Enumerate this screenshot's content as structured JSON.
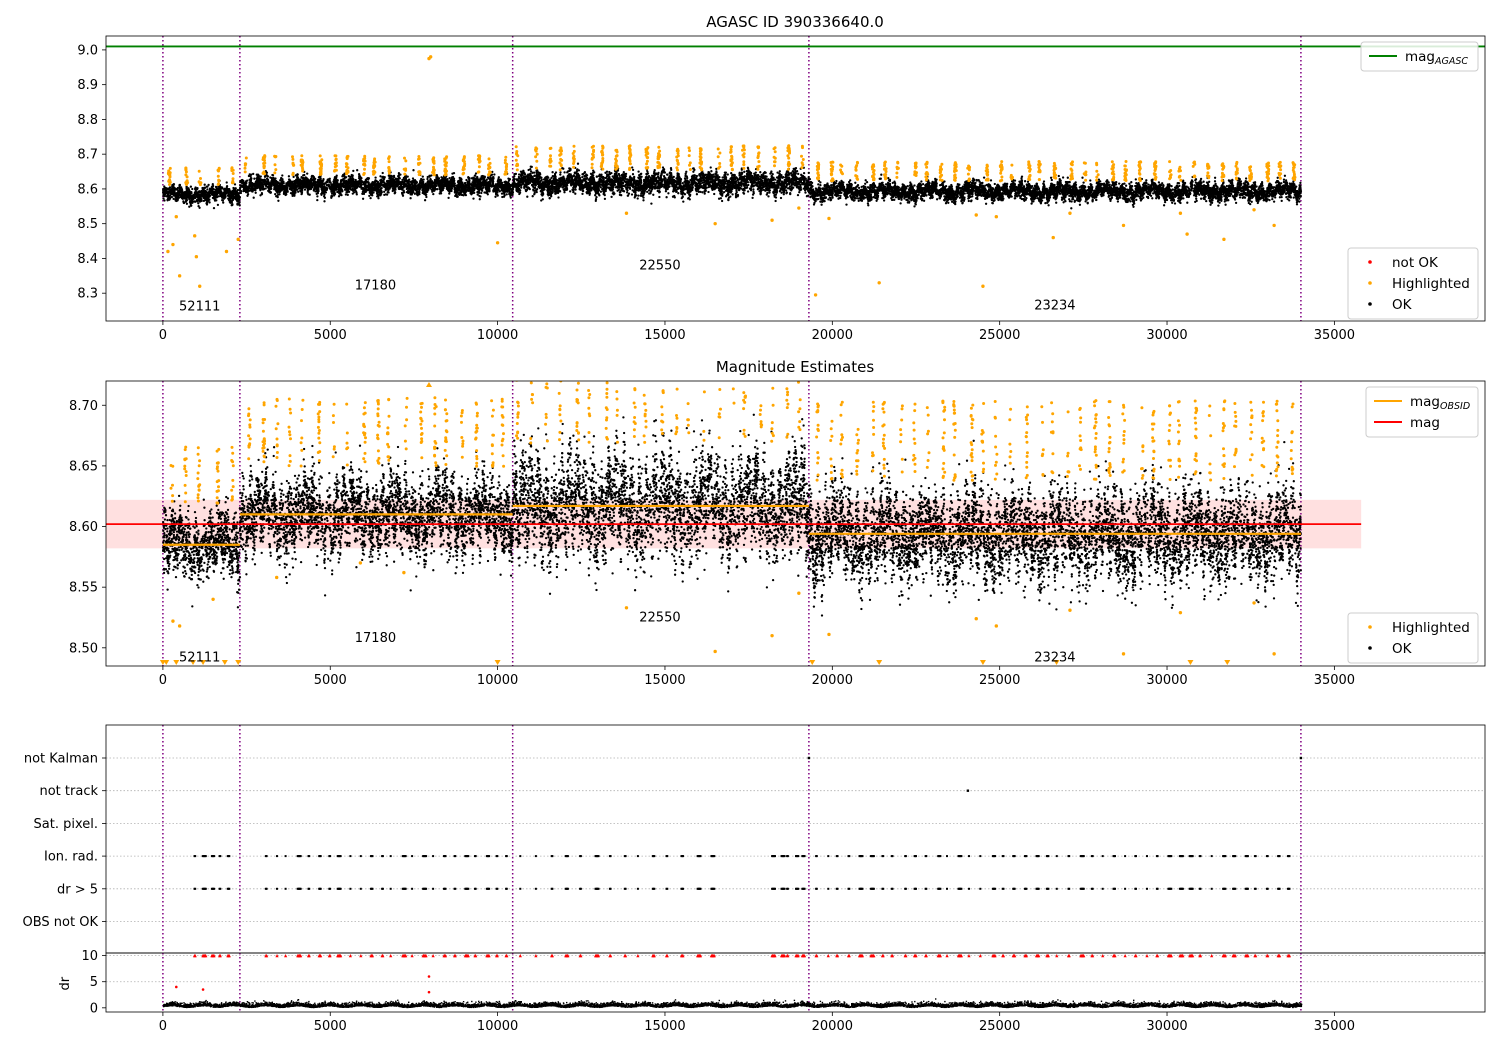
{
  "chart_data": [
    {
      "id": "top",
      "type": "scatter",
      "title": "AGASC ID 390336640.0",
      "xlim": [
        -1700,
        39500
      ],
      "ylim": [
        8.22,
        9.04
      ],
      "xticks": [
        0,
        5000,
        10000,
        15000,
        20000,
        25000,
        30000,
        35000
      ],
      "yticks": [
        8.3,
        8.4,
        8.5,
        8.6,
        8.7,
        8.8,
        8.9,
        9.0
      ],
      "ytick_labels": [
        "8.3",
        "8.4",
        "8.5",
        "8.6",
        "8.7",
        "8.8",
        "8.9",
        "9.0"
      ],
      "obs_boundaries": [
        0,
        2300,
        10450,
        19300,
        34000
      ],
      "obsids": [
        {
          "label": "52111",
          "x": 1100,
          "y": 8.265
        },
        {
          "label": "17180",
          "x": 6350,
          "y": 8.325
        },
        {
          "label": "22550",
          "x": 14850,
          "y": 8.383
        },
        {
          "label": "23234",
          "x": 26650,
          "y": 8.268
        }
      ],
      "ok_segments": [
        {
          "x0": 0,
          "x1": 2300,
          "mean": 8.585,
          "spread": 0.018
        },
        {
          "x0": 2300,
          "x1": 10450,
          "mean": 8.61,
          "spread": 0.02
        },
        {
          "x0": 10450,
          "x1": 19300,
          "mean": 8.617,
          "spread": 0.025
        },
        {
          "x0": 19300,
          "x1": 34000,
          "mean": 8.593,
          "spread": 0.02
        }
      ],
      "mag_agasc": 9.01,
      "highlighted_outliers": [
        [
          7950,
          8.975
        ],
        [
          8000,
          8.98
        ],
        [
          150,
          8.42
        ],
        [
          300,
          8.44
        ],
        [
          400,
          8.52
        ],
        [
          500,
          8.35
        ],
        [
          950,
          8.465
        ],
        [
          1000,
          8.405
        ],
        [
          1100,
          8.32
        ],
        [
          1900,
          8.42
        ],
        [
          2250,
          8.455
        ],
        [
          10000,
          8.445
        ],
        [
          13850,
          8.53
        ],
        [
          16500,
          8.5
        ],
        [
          18200,
          8.51
        ],
        [
          19000,
          8.545
        ],
        [
          19500,
          8.295
        ],
        [
          19900,
          8.515
        ],
        [
          21400,
          8.33
        ],
        [
          24500,
          8.32
        ],
        [
          24300,
          8.525
        ],
        [
          24900,
          8.52
        ],
        [
          26600,
          8.46
        ],
        [
          27100,
          8.53
        ],
        [
          28700,
          8.495
        ],
        [
          30600,
          8.47
        ],
        [
          30400,
          8.53
        ],
        [
          31700,
          8.455
        ],
        [
          32600,
          8.54
        ],
        [
          33200,
          8.495
        ]
      ],
      "legends": [
        {
          "position": "upper right",
          "entries": [
            {
              "label": "mag",
              "sub": "AGASC",
              "kind": "line",
              "color": "#008000"
            }
          ]
        },
        {
          "position": "lower right",
          "entries": [
            {
              "label": "not OK",
              "kind": "dot",
              "color": "#ff0000"
            },
            {
              "label": "Highlighted",
              "kind": "dot",
              "color": "#ffa500"
            },
            {
              "label": "OK",
              "kind": "dot",
              "color": "#000000"
            }
          ]
        }
      ]
    },
    {
      "id": "mid",
      "type": "scatter",
      "title": "Magnitude Estimates",
      "xlim": [
        -1700,
        39500
      ],
      "ylim": [
        8.485,
        8.72
      ],
      "xticks": [
        0,
        5000,
        10000,
        15000,
        20000,
        25000,
        30000,
        35000
      ],
      "yticks": [
        8.5,
        8.55,
        8.6,
        8.65,
        8.7
      ],
      "ytick_labels": [
        "8.50",
        "8.55",
        "8.60",
        "8.65",
        "8.70"
      ],
      "obs_boundaries": [
        0,
        2300,
        10450,
        19300,
        34000
      ],
      "obsids": [
        {
          "label": "52111",
          "x": 1100,
          "y": 8.493
        },
        {
          "label": "17180",
          "x": 6350,
          "y": 8.509
        },
        {
          "label": "22550",
          "x": 14850,
          "y": 8.526
        },
        {
          "label": "23234",
          "x": 26650,
          "y": 8.493
        }
      ],
      "ok_segments": [
        {
          "x0": 0,
          "x1": 2300,
          "mean": 8.585,
          "spread": 0.022
        },
        {
          "x0": 2300,
          "x1": 10450,
          "mean": 8.61,
          "spread": 0.026
        },
        {
          "x0": 10450,
          "x1": 19300,
          "mean": 8.617,
          "spread": 0.034
        },
        {
          "x0": 19300,
          "x1": 34000,
          "mean": 8.593,
          "spread": 0.03
        }
      ],
      "mag_obsid": [
        {
          "x0": 0,
          "x1": 2300,
          "value": 8.585
        },
        {
          "x0": 2300,
          "x1": 10450,
          "value": 8.61
        },
        {
          "x0": 10450,
          "x1": 19300,
          "value": 8.617
        },
        {
          "x0": 19300,
          "x1": 34000,
          "value": 8.594
        }
      ],
      "mag": 8.602,
      "mag_band": [
        8.582,
        8.622
      ],
      "mag_xrange": [
        -1700,
        35800
      ],
      "highlighted_outliers": [
        [
          300,
          8.522
        ],
        [
          500,
          8.518
        ],
        [
          1500,
          8.54
        ],
        [
          3400,
          8.558
        ],
        [
          5900,
          8.57
        ],
        [
          7200,
          8.562
        ],
        [
          13850,
          8.533
        ],
        [
          16500,
          8.497
        ],
        [
          18200,
          8.51
        ],
        [
          19000,
          8.545
        ],
        [
          19900,
          8.511
        ],
        [
          24300,
          8.524
        ],
        [
          24900,
          8.518
        ],
        [
          27100,
          8.531
        ],
        [
          28700,
          8.495
        ],
        [
          30400,
          8.529
        ],
        [
          32600,
          8.537
        ],
        [
          33200,
          8.495
        ]
      ],
      "below_markers": [
        0,
        100,
        400,
        900,
        1200,
        1850,
        2250,
        10000,
        19400,
        21400,
        24500,
        26700,
        30700,
        31800
      ],
      "top_marker": 7950,
      "legends": [
        {
          "position": "upper right",
          "entries": [
            {
              "label": "mag",
              "sub": "OBSID",
              "kind": "line",
              "color": "#ffa500"
            },
            {
              "label": "mag",
              "kind": "line",
              "color": "#ff0000"
            }
          ]
        },
        {
          "position": "lower right",
          "entries": [
            {
              "label": "Highlighted",
              "kind": "dot",
              "color": "#ffa500"
            },
            {
              "label": "OK",
              "kind": "dot",
              "color": "#000000"
            }
          ]
        }
      ]
    },
    {
      "id": "flags",
      "type": "scatter",
      "title": "",
      "xlim": [
        -1700,
        39500
      ],
      "obs_boundaries": [
        0,
        2300,
        10450,
        19300,
        34000
      ],
      "categories": [
        "not Kalman",
        "not track",
        "Sat. pixel.",
        "Ion. rad.",
        "dr > 5",
        "OBS not OK"
      ],
      "flag_points": {
        "not Kalman": [
          19300,
          34000
        ],
        "not track": [
          24050
        ],
        "Sat. pixel.": [],
        "OBS not OK": []
      }
    },
    {
      "id": "dr",
      "type": "scatter",
      "title": "",
      "ylabel": "dr",
      "xlim": [
        -1700,
        39500
      ],
      "ylim": [
        -0.8,
        10.5
      ],
      "yticks": [
        0,
        5,
        10
      ],
      "ytick_labels": [
        "0",
        "5",
        "10"
      ],
      "xticks": [
        0,
        5000,
        10000,
        15000,
        20000,
        25000,
        30000,
        35000
      ],
      "obs_boundaries": [
        0,
        2300,
        10450,
        19300,
        34000
      ],
      "red_outliers": [
        [
          400,
          4.0
        ],
        [
          1200,
          3.5
        ],
        [
          7950,
          6.0
        ],
        [
          7950,
          3.0
        ]
      ]
    }
  ]
}
